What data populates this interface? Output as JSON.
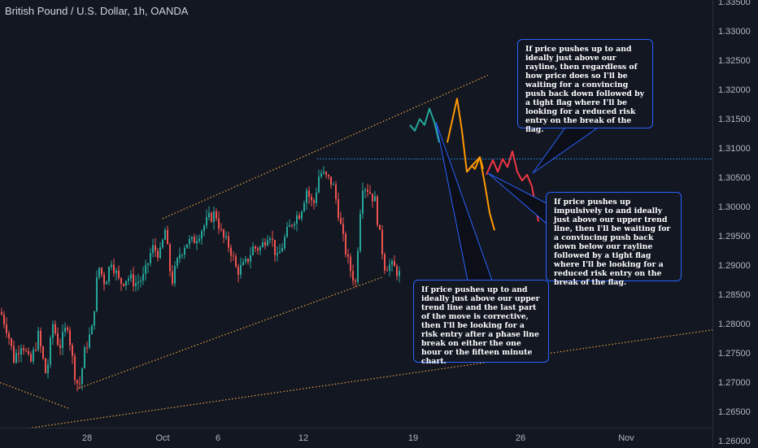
{
  "chart_title": "British Pound / U.S. Dollar, 1h, OANDA",
  "price_axis_labels": [
    "1.33500",
    "1.33000",
    "1.32500",
    "1.32000",
    "1.31500",
    "1.31000",
    "1.30500",
    "1.30000",
    "1.29500",
    "1.29000",
    "1.28500",
    "1.28000",
    "1.27500",
    "1.27000",
    "1.26500",
    "1.26000"
  ],
  "time_axis_labels": [
    "28",
    "Oct",
    "6",
    "12",
    "19",
    "26",
    "Nov"
  ],
  "annotations": {
    "rayline_note": "If price pushes up to and ideally just above our rayline, then regardless of how price does so I'll be waiting for a convincing push back down followed by a tight flag where I'll be looking for a reduced risk entry on the break of the flag.",
    "impulsive_note": "If price pushes up impulsively to and ideally just above our upper trend line, then I'll be waiting for a convincing push back down below our rayline followed by a tight flag where I'll be looking for a reduced risk entry on the break of the flag.",
    "corrective_note": "If price pushes up to and ideally just above our upper trend line and the last part of the move is corrective, then I'll be looking for a risk entry after a phase line break on either the one hour or the fifteen minute chart."
  },
  "colors": {
    "background": "#131722",
    "candle_up": "#26a69a",
    "candle_down": "#ef5350",
    "trendline": "#e8a33d",
    "rayline": "#2196f3",
    "path_green": "#26a69a",
    "path_orange": "#ff9800",
    "path_red": "#f23645",
    "callout_border": "#2962ff"
  },
  "chart_data": {
    "type": "candlestick",
    "symbol": "British Pound / U.S. Dollar",
    "interval": "1h",
    "source": "OANDA",
    "ylim": [
      1.2575,
      1.3355
    ],
    "rayline_level": 1.3082,
    "price_path_anchors": [
      [
        0,
        1.282
      ],
      [
        8,
        1.279
      ],
      [
        16,
        1.274
      ],
      [
        26,
        1.277
      ],
      [
        36,
        1.273
      ],
      [
        46,
        1.278
      ],
      [
        56,
        1.271
      ],
      [
        64,
        1.28
      ],
      [
        72,
        1.276
      ],
      [
        82,
        1.28
      ],
      [
        90,
        1.272
      ],
      [
        96,
        1.269
      ],
      [
        104,
        1.276
      ],
      [
        112,
        1.279
      ],
      [
        120,
        1.29
      ],
      [
        128,
        1.287
      ],
      [
        136,
        1.291
      ],
      [
        146,
        1.287
      ],
      [
        156,
        1.288
      ],
      [
        166,
        1.287
      ],
      [
        176,
        1.288
      ],
      [
        186,
        1.293
      ],
      [
        196,
        1.292
      ],
      [
        202,
        1.296
      ],
      [
        210,
        1.287
      ],
      [
        220,
        1.292
      ],
      [
        228,
        1.294
      ],
      [
        236,
        1.294
      ],
      [
        246,
        1.296
      ],
      [
        256,
        1.298
      ],
      [
        264,
        1.299
      ],
      [
        272,
        1.295
      ],
      [
        282,
        1.293
      ],
      [
        290,
        1.289
      ],
      [
        300,
        1.29
      ],
      [
        310,
        1.293
      ],
      [
        320,
        1.293
      ],
      [
        330,
        1.296
      ],
      [
        340,
        1.291
      ],
      [
        350,
        1.295
      ],
      [
        360,
        1.298
      ],
      [
        368,
        1.299
      ],
      [
        376,
        1.303
      ],
      [
        384,
        1.3
      ],
      [
        392,
        1.306
      ],
      [
        400,
        1.305
      ],
      [
        408,
        1.304
      ],
      [
        414,
        1.3
      ],
      [
        420,
        1.295
      ],
      [
        428,
        1.29
      ],
      [
        436,
        1.287
      ],
      [
        444,
        1.304
      ],
      [
        452,
        1.303
      ],
      [
        460,
        1.301
      ],
      [
        466,
        1.295
      ],
      [
        472,
        1.29
      ],
      [
        478,
        1.29
      ],
      [
        484,
        1.2895
      ],
      [
        490,
        1.2885
      ]
    ],
    "trendlines": [
      {
        "name": "upper channel",
        "points": [
          [
            200,
            1.298
          ],
          [
            600,
            1.3225
          ]
        ]
      },
      {
        "name": "lower channel",
        "points": [
          [
            96,
            1.269
          ],
          [
            470,
            1.288
          ]
        ]
      },
      {
        "name": "lower channel left",
        "points": [
          [
            0,
            1.27
          ],
          [
            86,
            1.2655
          ]
        ]
      },
      {
        "name": "long support",
        "points": [
          [
            0,
            1.2615
          ],
          [
            876,
            1.279
          ]
        ]
      }
    ],
    "projections": {
      "green": [
        [
          504,
          1.314
        ],
        [
          510,
          1.313
        ],
        [
          516,
          1.315
        ],
        [
          522,
          1.314
        ],
        [
          528,
          1.3168
        ],
        [
          534,
          1.3145
        ],
        [
          540,
          1.311
        ]
      ],
      "orange_a": [
        [
          550,
          1.311
        ],
        [
          562,
          1.3185
        ],
        [
          568,
          1.313
        ],
        [
          574,
          1.306
        ],
        [
          580,
          1.307
        ],
        [
          584,
          1.3065
        ],
        [
          590,
          1.3085
        ],
        [
          596,
          1.304
        ],
        [
          602,
          1.299
        ],
        [
          608,
          1.296
        ]
      ],
      "orange_b": [
        [
          574,
          1.306
        ],
        [
          580,
          1.307
        ],
        [
          590,
          1.3085
        ],
        [
          594,
          1.3065
        ]
      ],
      "red": [
        [
          598,
          1.3055
        ],
        [
          606,
          1.308
        ],
        [
          612,
          1.306
        ],
        [
          618,
          1.3082
        ],
        [
          624,
          1.3068
        ],
        [
          630,
          1.3095
        ],
        [
          636,
          1.306
        ],
        [
          642,
          1.3045
        ],
        [
          648,
          1.3055
        ],
        [
          654,
          1.3035
        ],
        [
          660,
          1.299
        ],
        [
          662,
          1.2975
        ]
      ]
    }
  }
}
